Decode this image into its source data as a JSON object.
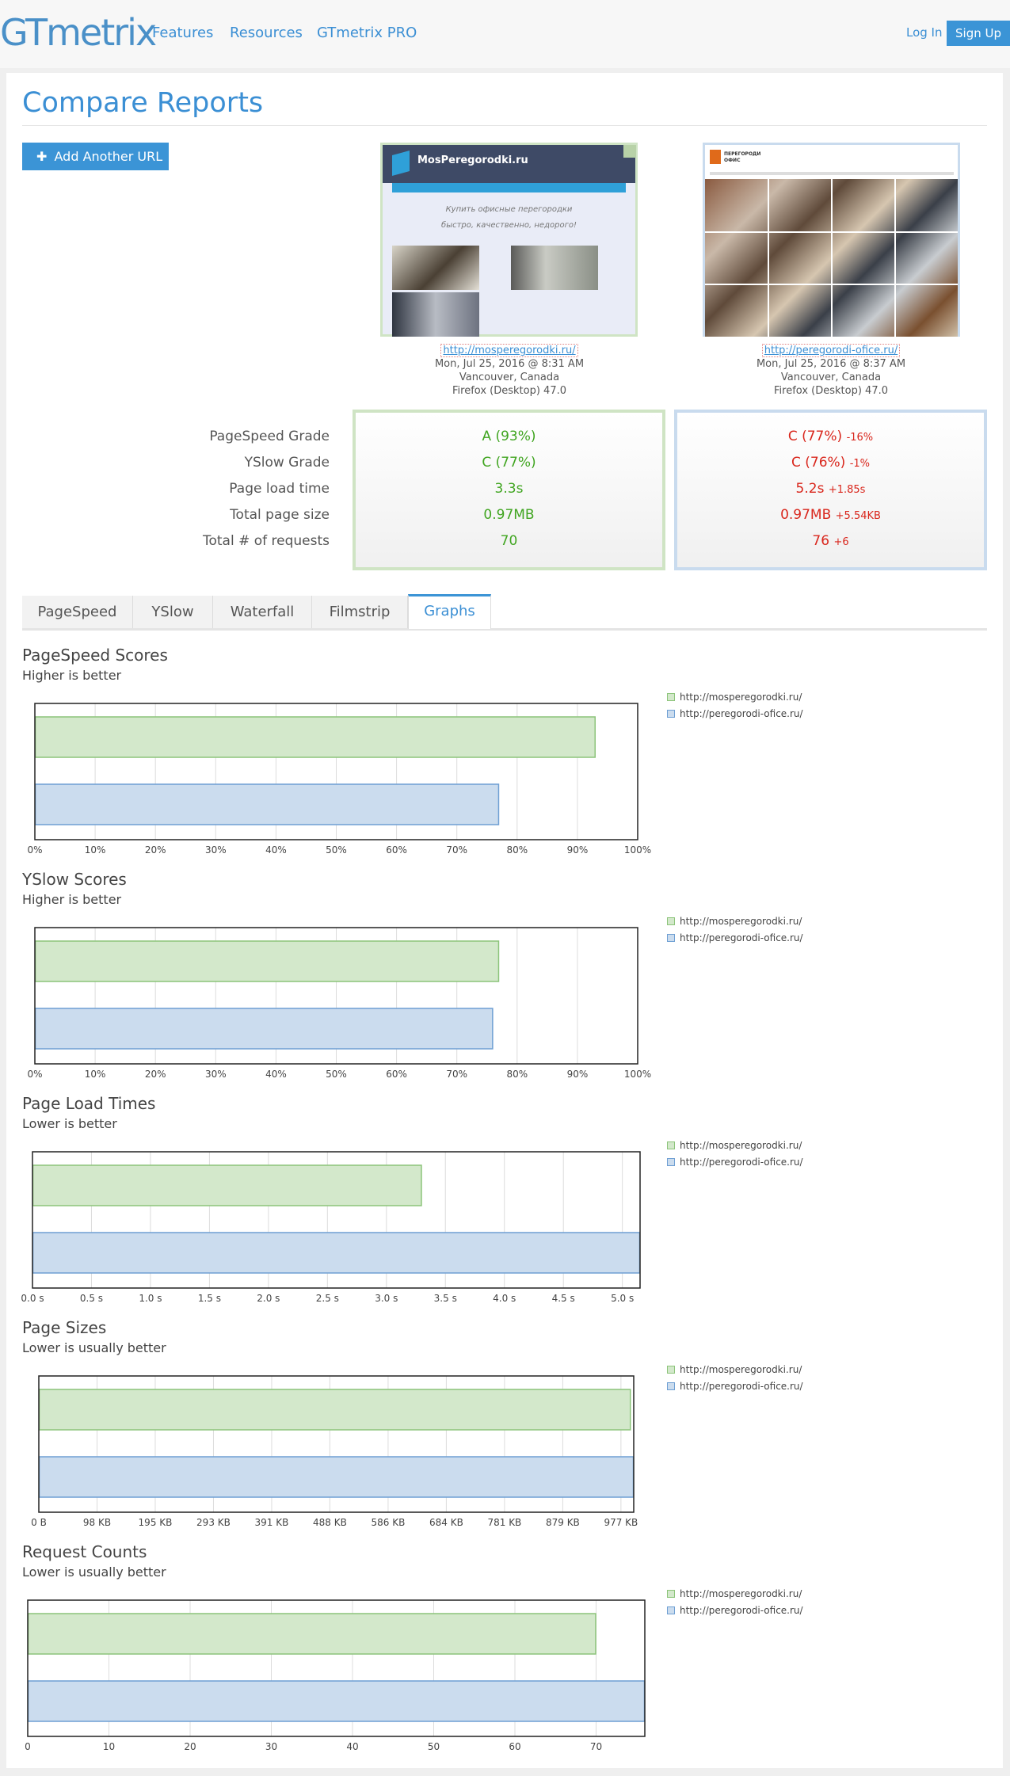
{
  "header": {
    "logo": "GTmetrix",
    "nav": [
      "Features",
      "Resources",
      "GTmetrix PRO"
    ],
    "login": "Log In",
    "signup": "Sign Up"
  },
  "page": {
    "title": "Compare Reports",
    "add_url_label": "Add Another URL"
  },
  "reports": [
    {
      "url": "http://mosperegorodki.ru/",
      "date": "Mon, Jul 25, 2016 @ 8:31 AM",
      "location": "Vancouver, Canada",
      "browser": "Firefox (Desktop) 47.0",
      "thumb_brand": "MosPeregorodki.ru",
      "thumb_tagline_1": "Купить офисные перегородки",
      "thumb_tagline_2": "быстро, качественно, недорого!"
    },
    {
      "url": "http://peregorodi-ofice.ru/",
      "date": "Mon, Jul 25, 2016 @ 8:37 AM",
      "location": "Vancouver, Canada",
      "browser": "Firefox (Desktop) 47.0",
      "thumb_brand_1": "ПЕРЕГОРОДИ",
      "thumb_brand_2": "ОФИС"
    }
  ],
  "summary": {
    "labels": [
      "PageSpeed Grade",
      "YSlow Grade",
      "Page load time",
      "Total page size",
      "Total # of requests"
    ],
    "col1": [
      "A (93%)",
      "C (77%)",
      "3.3s",
      "0.97MB",
      "70"
    ],
    "col2": [
      {
        "value": "C (77%)",
        "delta": "-16%"
      },
      {
        "value": "C (76%)",
        "delta": "-1%"
      },
      {
        "value": "5.2s",
        "delta": "+1.85s"
      },
      {
        "value": "0.97MB",
        "delta": "+5.54KB"
      },
      {
        "value": "76",
        "delta": "+6"
      }
    ]
  },
  "tabs": [
    "PageSpeed",
    "YSlow",
    "Waterfall",
    "Filmstrip",
    "Graphs"
  ],
  "active_tab": "Graphs",
  "colors": {
    "green_fill": "#d3e8cb",
    "green_stroke": "#8cc47a",
    "blue_fill": "#cbdcee",
    "blue_stroke": "#6e9fd3",
    "accent": "#3b8fd4"
  },
  "chart_data": [
    {
      "type": "bar",
      "title": "PageSpeed Scores",
      "subtitle": "Higher is better",
      "series": [
        {
          "name": "http://mosperegorodki.ru/",
          "values": [
            93
          ]
        },
        {
          "name": "http://peregorodi-ofice.ru/",
          "values": [
            77
          ]
        }
      ],
      "xlim": [
        0,
        100
      ],
      "ticks": [
        0,
        10,
        20,
        30,
        40,
        50,
        60,
        70,
        80,
        90,
        100
      ],
      "tick_labels": [
        "0%",
        "10%",
        "20%",
        "30%",
        "40%",
        "50%",
        "60%",
        "70%",
        "80%",
        "90%",
        "100%"
      ],
      "grid": true,
      "legend": "right"
    },
    {
      "type": "bar",
      "title": "YSlow Scores",
      "subtitle": "Higher is better",
      "series": [
        {
          "name": "http://mosperegorodki.ru/",
          "values": [
            77
          ]
        },
        {
          "name": "http://peregorodi-ofice.ru/",
          "values": [
            76
          ]
        }
      ],
      "xlim": [
        0,
        100
      ],
      "ticks": [
        0,
        10,
        20,
        30,
        40,
        50,
        60,
        70,
        80,
        90,
        100
      ],
      "tick_labels": [
        "0%",
        "10%",
        "20%",
        "30%",
        "40%",
        "50%",
        "60%",
        "70%",
        "80%",
        "90%",
        "100%"
      ],
      "grid": true,
      "legend": "right"
    },
    {
      "type": "bar",
      "title": "Page Load Times",
      "subtitle": "Lower is better",
      "series": [
        {
          "name": "http://mosperegorodki.ru/",
          "values": [
            3.3
          ]
        },
        {
          "name": "http://peregorodi-ofice.ru/",
          "values": [
            5.15
          ]
        }
      ],
      "xlim": [
        0,
        5.15
      ],
      "ticks": [
        0,
        0.5,
        1,
        1.5,
        2,
        2.5,
        3,
        3.5,
        4,
        4.5,
        5
      ],
      "tick_labels": [
        "0.0 s",
        "0.5 s",
        "1.0 s",
        "1.5 s",
        "2.0 s",
        "2.5 s",
        "3.0 s",
        "3.5 s",
        "4.0 s",
        "4.5 s",
        "5.0 s"
      ],
      "grid": true,
      "legend": "right"
    },
    {
      "type": "bar",
      "title": "Page Sizes",
      "subtitle": "Lower is usually better",
      "series": [
        {
          "name": "http://mosperegorodki.ru/",
          "values": [
            993
          ]
        },
        {
          "name": "http://peregorodi-ofice.ru/",
          "values": [
            998
          ]
        }
      ],
      "xlim": [
        0,
        998
      ],
      "ticks": [
        0,
        97.66,
        195.31,
        292.97,
        390.63,
        488.28,
        585.94,
        683.59,
        781.25,
        878.91,
        976.56
      ],
      "tick_labels": [
        "0 B",
        "98 KB",
        "195 KB",
        "293 KB",
        "391 KB",
        "488 KB",
        "586 KB",
        "684 KB",
        "781 KB",
        "879 KB",
        "977 KB"
      ],
      "grid": true,
      "legend": "right"
    },
    {
      "type": "bar",
      "title": "Request Counts",
      "subtitle": "Lower is usually better",
      "series": [
        {
          "name": "http://mosperegorodki.ru/",
          "values": [
            70
          ]
        },
        {
          "name": "http://peregorodi-ofice.ru/",
          "values": [
            76
          ]
        }
      ],
      "xlim": [
        0,
        76
      ],
      "ticks": [
        0,
        10,
        20,
        30,
        40,
        50,
        60,
        70
      ],
      "tick_labels": [
        "0",
        "10",
        "20",
        "30",
        "40",
        "50",
        "60",
        "70"
      ],
      "grid": true,
      "legend": "right"
    }
  ]
}
